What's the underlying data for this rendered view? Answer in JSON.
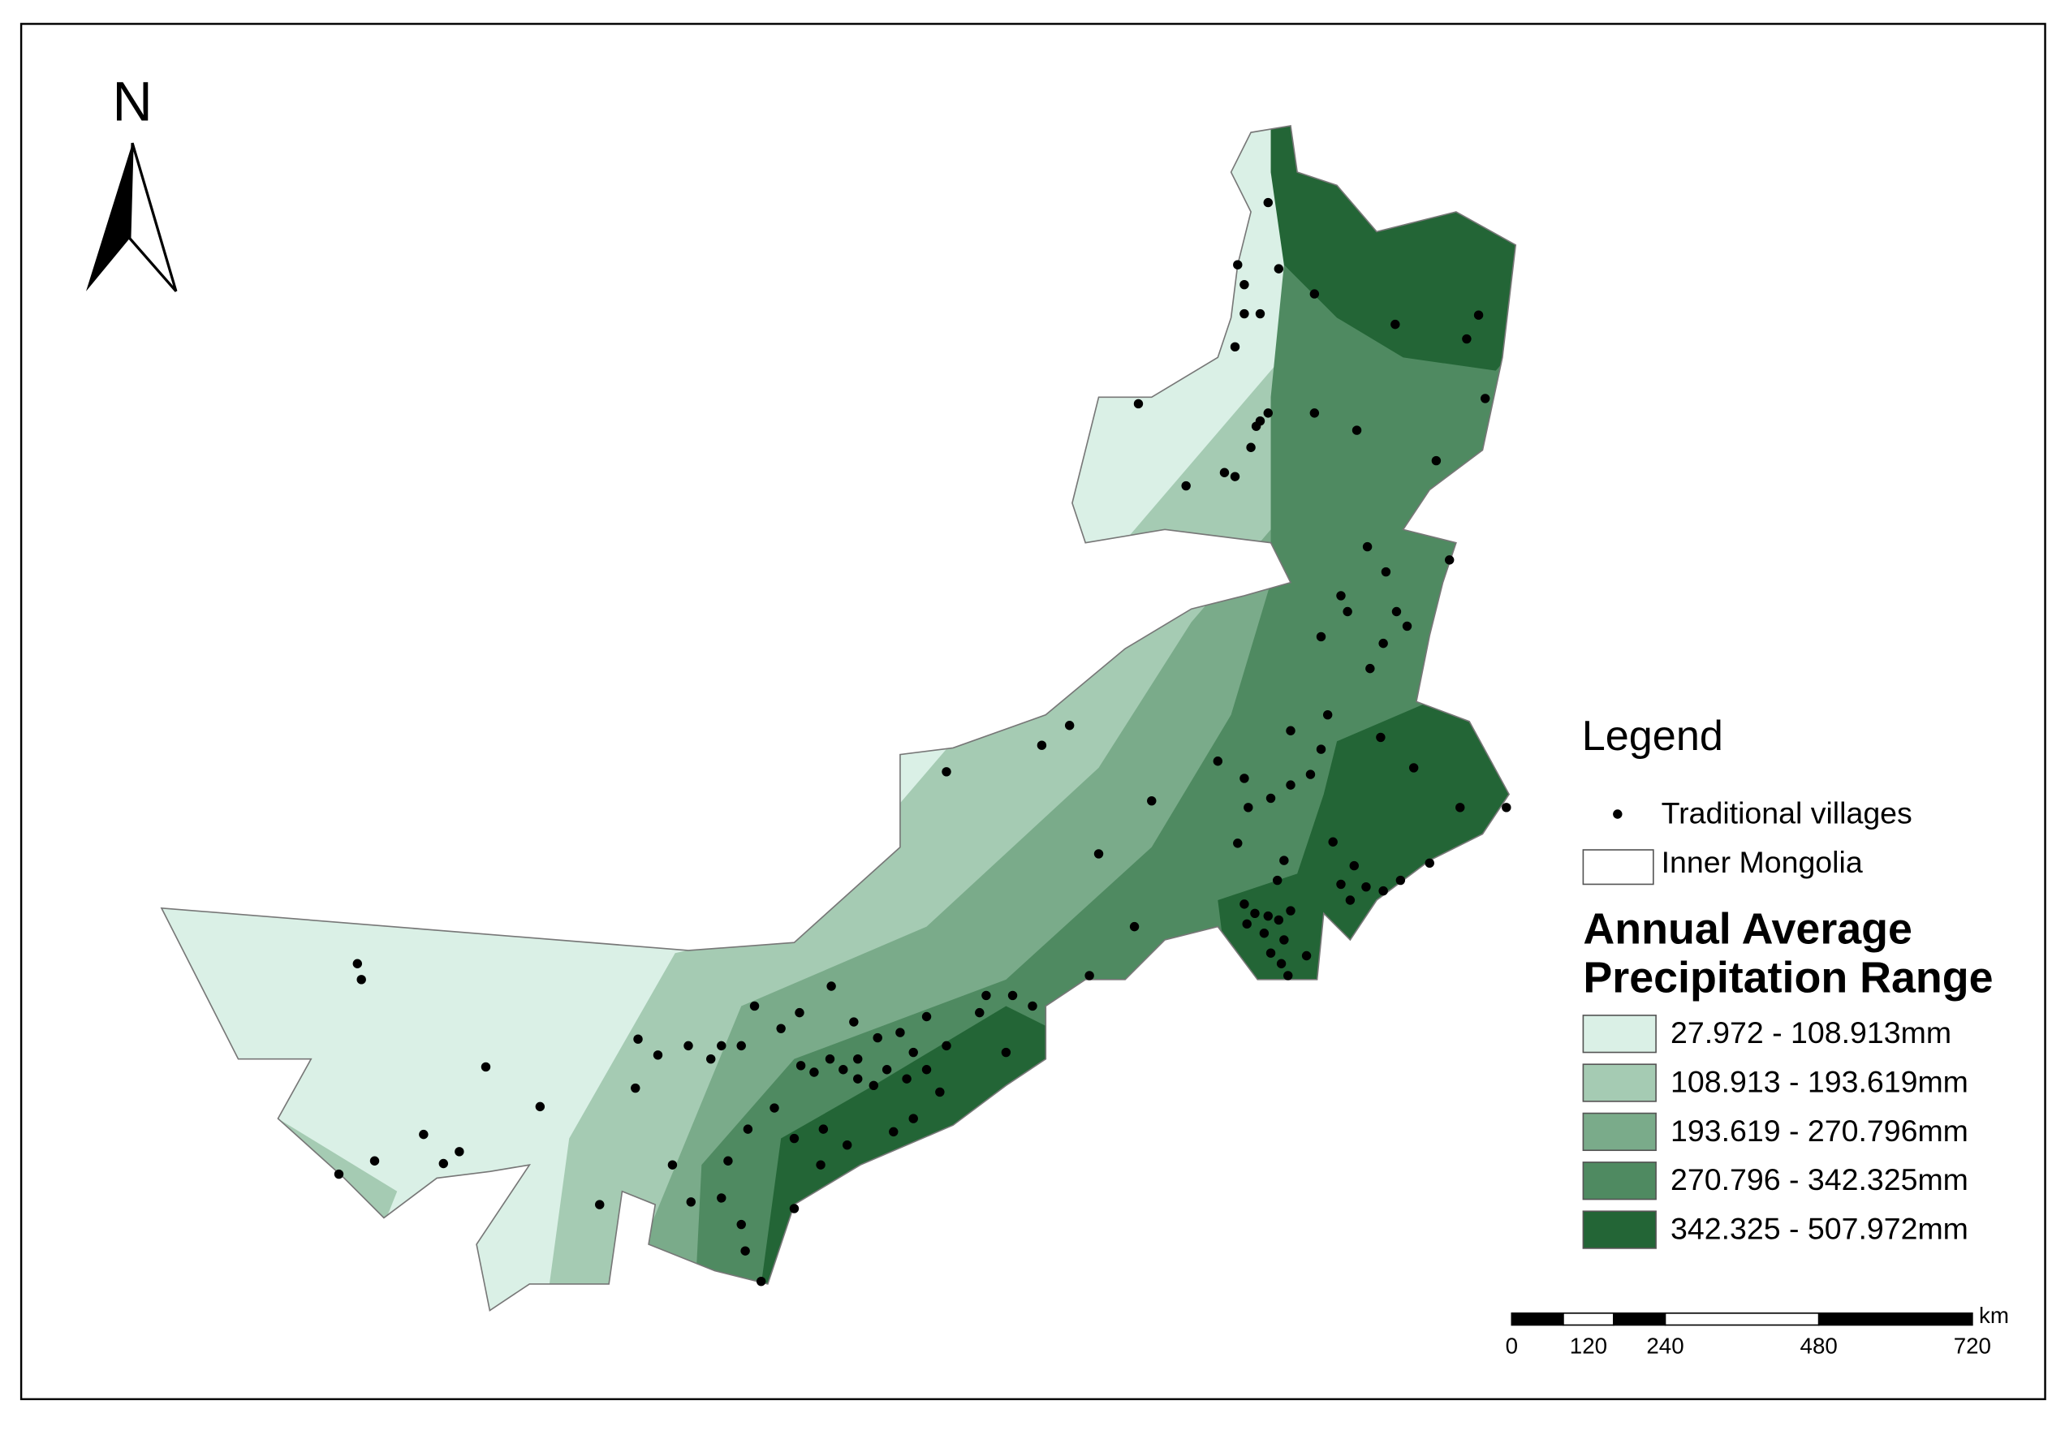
{
  "north": "N",
  "legend": {
    "title": "Legend",
    "items": [
      "Traditional villages",
      "Inner Mongolia"
    ],
    "subtitle": [
      "Annual Average",
      "Precipitation Range"
    ],
    "ranges": [
      "27.972 - 108.913mm",
      "108.913 - 193.619mm",
      "193.619 - 270.796mm",
      "270.796 - 342.325mm",
      "342.325 - 507.972mm"
    ]
  },
  "scale_bar": {
    "unit": "km",
    "labels": [
      "0",
      "120",
      "240",
      "480",
      "720"
    ]
  }
}
